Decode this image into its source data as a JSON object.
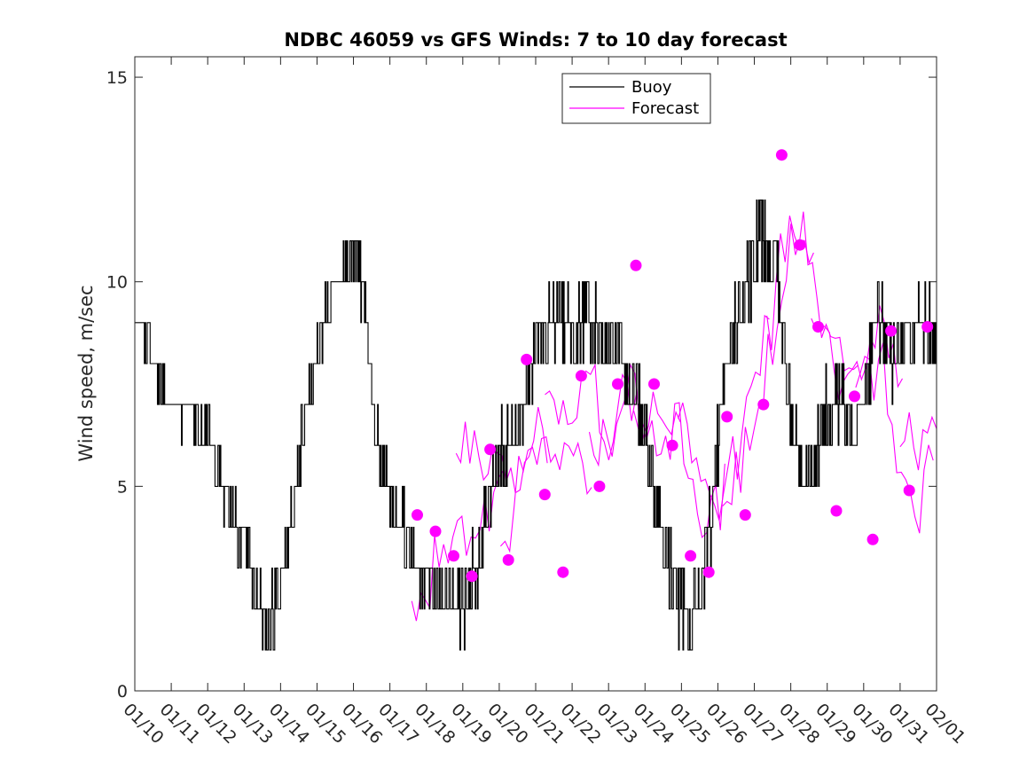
{
  "chart_data": {
    "type": "line",
    "title": "NDBC 46059 vs GFS Winds: 7 to 10 day forecast",
    "xlabel": "",
    "ylabel": "Wind speed, m/sec",
    "xlim": [
      0,
      22
    ],
    "ylim": [
      0,
      15.5
    ],
    "x_tick_labels": [
      "01/10",
      "01/11",
      "01/12",
      "01/13",
      "01/14",
      "01/15",
      "01/16",
      "01/17",
      "01/18",
      "01/19",
      "01/20",
      "01/21",
      "01/22",
      "01/23",
      "01/24",
      "01/25",
      "01/26",
      "01/27",
      "01/28",
      "01/29",
      "01/30",
      "01/31",
      "02/01"
    ],
    "y_ticks": [
      0,
      5,
      10,
      15
    ],
    "legend": {
      "position": "top-center",
      "entries": [
        {
          "label": "Buoy",
          "color": "#000000"
        },
        {
          "label": "Forecast",
          "color": "#ff00ff"
        }
      ]
    },
    "colors": {
      "buoy": "#000000",
      "forecast": "#ff00ff"
    },
    "buoy_trend": {
      "x": [
        0,
        0.5,
        0.9,
        1.5,
        2.1,
        2.5,
        2.9,
        3.3,
        3.7,
        4.0,
        4.3,
        4.6,
        5.0,
        5.4,
        5.8,
        6.05,
        6.3,
        6.6,
        7.0,
        7.4,
        7.8,
        8.1,
        8.4,
        8.8,
        9.1,
        9.5,
        9.9,
        10.3,
        10.7,
        11.1,
        11.6,
        12.0,
        12.4,
        12.8,
        13.2,
        13.6,
        14.0,
        14.3,
        14.6,
        14.9,
        15.2,
        15.5,
        15.8,
        16.1,
        16.4,
        16.8,
        17.2,
        17.6,
        17.8,
        18.0,
        18.3,
        18.6,
        18.9,
        19.2,
        19.6,
        20.0,
        20.4,
        20.8,
        21.1,
        21.5,
        22.0
      ],
      "y": [
        9,
        8.2,
        7,
        6.8,
        6,
        4.8,
        3.8,
        2.5,
        1.6,
        2.6,
        4.2,
        6.5,
        8.2,
        9.8,
        10.3,
        11,
        9.3,
        6.2,
        4.5,
        3.8,
        3.3,
        2.6,
        2.4,
        2.5,
        2.2,
        3.3,
        5.6,
        6.2,
        7.2,
        8.6,
        9.2,
        8.9,
        9.1,
        8.6,
        8.2,
        7.6,
        6.6,
        4.6,
        3.2,
        2.2,
        1.4,
        2.4,
        4.3,
        6.8,
        8.8,
        9.6,
        11.3,
        10.4,
        8.2,
        6.6,
        5.4,
        5.6,
        6.6,
        7.3,
        6.4,
        7.5,
        9.2,
        8.3,
        8.5,
        8.8,
        8.7
      ],
      "noise": [
        0,
        0.4,
        0.4,
        0.4,
        0.6,
        0.6,
        0.6,
        0.8,
        0.8,
        0.7,
        0.6,
        0.6,
        0.5,
        0.5,
        0.6,
        0.7,
        0.6,
        0.8,
        0.8,
        0.8,
        0.9,
        0.9,
        1.0,
        1.0,
        1.0,
        0.9,
        0.8,
        0.8,
        0.9,
        0.9,
        0.8,
        0.9,
        0.9,
        0.9,
        0.8,
        0.8,
        0.9,
        0.9,
        0.9,
        1.0,
        1.0,
        0.9,
        0.9,
        0.9,
        1.0,
        1.0,
        1.1,
        1.0,
        1.0,
        0.9,
        0.8,
        0.8,
        0.9,
        0.9,
        0.9,
        0.9,
        0.9,
        0.9,
        0.9,
        0.8,
        0.8
      ]
    },
    "forecast_points": {
      "x": [
        7.75,
        8.25,
        8.75,
        9.25,
        9.75,
        10.25,
        10.75,
        11.25,
        11.75,
        12.25,
        12.75,
        13.25,
        13.75,
        14.25,
        14.75,
        15.25,
        15.75,
        16.25,
        16.75,
        17.25,
        17.75,
        18.25,
        18.75,
        19.25,
        19.75,
        20.25,
        20.75,
        21.25,
        21.75
      ],
      "y": [
        4.3,
        3.9,
        3.3,
        2.8,
        5.9,
        3.2,
        8.1,
        4.8,
        2.9,
        7.7,
        5.0,
        7.5,
        10.4,
        7.5,
        6.0,
        3.3,
        2.9,
        6.7,
        4.3,
        7.0,
        13.1,
        10.9,
        8.9,
        4.4,
        7.2,
        3.7,
        8.8,
        4.9,
        8.9
      ]
    },
    "forecast_trend": {
      "x": [
        8.0,
        8.5,
        9.0,
        9.5,
        10.0,
        10.5,
        11.0,
        11.5,
        12.0,
        12.5,
        13.0,
        13.5,
        14.0,
        14.5,
        15.0,
        15.5,
        16.0,
        16.5,
        17.0,
        17.5,
        18.0,
        18.5,
        19.0,
        19.5,
        20.0,
        20.5,
        21.0,
        21.5,
        22.0
      ],
      "y": [
        3.5,
        4.2,
        4.5,
        5.0,
        5.5,
        5.8,
        6.2,
        6.0,
        6.3,
        6.6,
        6.8,
        7.2,
        7.4,
        6.5,
        5.8,
        4.5,
        4.0,
        5.5,
        7.0,
        8.5,
        11.0,
        10.5,
        9.0,
        7.5,
        7.0,
        7.8,
        6.5,
        5.5,
        6.5
      ]
    },
    "forecast_ensemble": {
      "members": 12,
      "segment_length_days": 2.5,
      "spread": 1.6
    }
  }
}
